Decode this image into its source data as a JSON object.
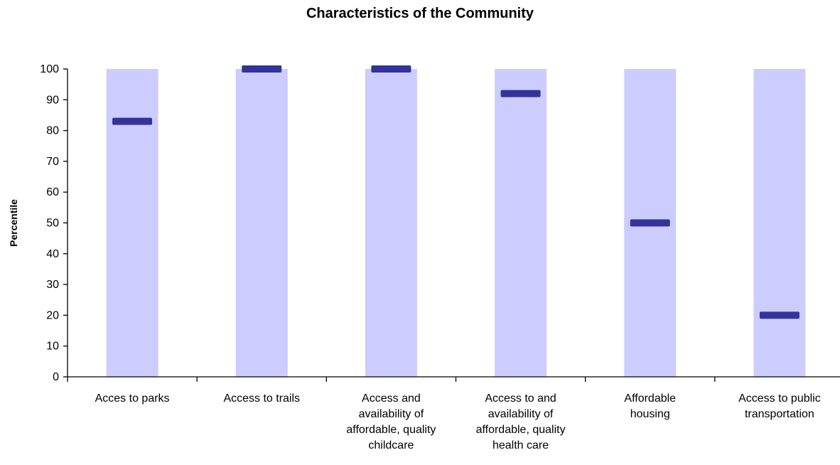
{
  "chart_data": {
    "type": "bar",
    "title": "Characteristics of the Community",
    "xlabel": "",
    "ylabel": "Percentile",
    "ylim": [
      0,
      100
    ],
    "yticks": [
      0,
      10,
      20,
      30,
      40,
      50,
      60,
      70,
      80,
      90,
      100
    ],
    "categories": [
      [
        "Acces to parks"
      ],
      [
        "Access to trails"
      ],
      [
        "Access and",
        "availability of",
        "affordable, quality",
        "childcare"
      ],
      [
        "Access to and",
        "availability of",
        "affordable, quality",
        "health care"
      ],
      [
        "Affordable",
        "housing"
      ],
      [
        "Access to public",
        "transportation"
      ]
    ],
    "range_max": [
      100,
      100,
      100,
      100,
      100,
      100
    ],
    "values": [
      83,
      100,
      100,
      92,
      50,
      20
    ],
    "colors": {
      "range": "#ccccff",
      "marker": "#333399"
    },
    "grid": false,
    "legend": "none"
  }
}
